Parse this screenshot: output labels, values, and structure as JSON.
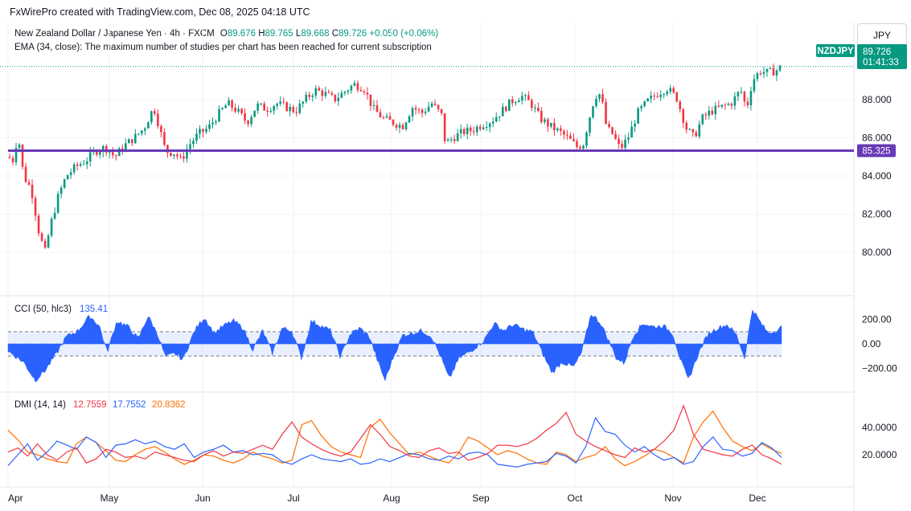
{
  "header": {
    "credit": "FxWirePro created with TradingView.com, Dec 08, 2025 04:18 UTC",
    "symbol_desc": "New Zealand Dollar / Japanese Yen · 4h · FXCM",
    "ohlc": {
      "o_label": "O",
      "o": "89.676",
      "h_label": "H",
      "h": "89.765",
      "l_label": "L",
      "l": "89.668",
      "c_label": "C",
      "c": "89.726",
      "change": "+0.050 (+0.06%)"
    },
    "ema_note": "EMA (34, close): The maximum number of studies per chart has been reached for current subscription",
    "currency": "JPY"
  },
  "price_panel": {
    "symbol_tag": "NZDJPY",
    "last_price": "89.726",
    "countdown": "01:41:33",
    "level_label": "85.325",
    "colors": {
      "up": "#089981",
      "down": "#f23645",
      "level": "#673ab7",
      "tag": "#089981"
    }
  },
  "cci_panel": {
    "title": "CCI (50, hlc3)",
    "value": "135.41",
    "color": "#2962ff"
  },
  "dmi_panel": {
    "title": "DMI (14, 14)",
    "plus_di": "12.7559",
    "minus_di": "17.7552",
    "adx": "20.8362",
    "colors": {
      "plus_di": "#f23645",
      "minus_di": "#2962ff",
      "adx": "#ff6d00"
    }
  },
  "chart_data": [
    {
      "type": "candlestick",
      "name": "NZDJPY",
      "ylim": [
        79.0,
        90.6
      ],
      "y_ticks": [
        "88.000",
        "86.000",
        "84.000",
        "82.000",
        "80.000"
      ],
      "y_tick_values": [
        88,
        86,
        84,
        82,
        80
      ],
      "x_ticks": [
        "Apr",
        "May",
        "Jun",
        "Jul",
        "Aug",
        "Sep",
        "Oct",
        "Nov",
        "Dec"
      ],
      "horizontal_level": 85.325,
      "last_close": 89.726,
      "close_path": [
        {
          "t": 0.0,
          "v": 85.0
        },
        {
          "t": 0.3,
          "v": 84.8
        },
        {
          "t": 0.5,
          "v": 86.3
        },
        {
          "t": 0.8,
          "v": 84.0
        },
        {
          "t": 1.2,
          "v": 83.3
        },
        {
          "t": 1.6,
          "v": 81.0
        },
        {
          "t": 1.9,
          "v": 80.0
        },
        {
          "t": 2.2,
          "v": 81.5
        },
        {
          "t": 2.6,
          "v": 83.0
        },
        {
          "t": 3.0,
          "v": 84.0
        },
        {
          "t": 3.5,
          "v": 84.5
        },
        {
          "t": 4.0,
          "v": 84.8
        },
        {
          "t": 4.5,
          "v": 85.3
        },
        {
          "t": 5.0,
          "v": 85.5
        },
        {
          "t": 5.5,
          "v": 85.0
        },
        {
          "t": 6.0,
          "v": 85.6
        },
        {
          "t": 6.5,
          "v": 86.0
        },
        {
          "t": 7.0,
          "v": 86.5
        },
        {
          "t": 7.5,
          "v": 87.6
        },
        {
          "t": 7.8,
          "v": 86.5
        },
        {
          "t": 8.1,
          "v": 85.3
        },
        {
          "t": 8.6,
          "v": 85.2
        },
        {
          "t": 8.9,
          "v": 84.8
        },
        {
          "t": 9.3,
          "v": 85.6
        },
        {
          "t": 9.8,
          "v": 86.2
        },
        {
          "t": 10.3,
          "v": 86.5
        },
        {
          "t": 10.8,
          "v": 87.2
        },
        {
          "t": 11.3,
          "v": 87.8
        },
        {
          "t": 11.8,
          "v": 87.4
        },
        {
          "t": 12.3,
          "v": 86.8
        },
        {
          "t": 12.8,
          "v": 87.7
        },
        {
          "t": 13.3,
          "v": 87.5
        },
        {
          "t": 13.8,
          "v": 87.8
        },
        {
          "t": 14.3,
          "v": 87.6
        },
        {
          "t": 14.8,
          "v": 87.4
        },
        {
          "t": 15.3,
          "v": 88.0
        },
        {
          "t": 15.8,
          "v": 88.5
        },
        {
          "t": 16.3,
          "v": 88.3
        },
        {
          "t": 16.8,
          "v": 88.0
        },
        {
          "t": 17.3,
          "v": 88.4
        },
        {
          "t": 17.8,
          "v": 88.8
        },
        {
          "t": 18.3,
          "v": 88.6
        },
        {
          "t": 18.8,
          "v": 87.5
        },
        {
          "t": 19.3,
          "v": 87.0
        },
        {
          "t": 19.8,
          "v": 86.8
        },
        {
          "t": 20.3,
          "v": 86.6
        },
        {
          "t": 20.8,
          "v": 87.6
        },
        {
          "t": 21.3,
          "v": 87.3
        },
        {
          "t": 21.8,
          "v": 87.8
        },
        {
          "t": 22.3,
          "v": 87.2
        },
        {
          "t": 22.5,
          "v": 85.7
        },
        {
          "t": 22.9,
          "v": 86.0
        },
        {
          "t": 23.4,
          "v": 86.3
        },
        {
          "t": 23.9,
          "v": 86.4
        },
        {
          "t": 24.4,
          "v": 86.7
        },
        {
          "t": 24.9,
          "v": 86.9
        },
        {
          "t": 25.4,
          "v": 87.4
        },
        {
          "t": 25.9,
          "v": 87.9
        },
        {
          "t": 26.4,
          "v": 88.2
        },
        {
          "t": 26.9,
          "v": 87.8
        },
        {
          "t": 27.4,
          "v": 87.0
        },
        {
          "t": 27.9,
          "v": 86.6
        },
        {
          "t": 28.4,
          "v": 86.3
        },
        {
          "t": 28.9,
          "v": 85.9
        },
        {
          "t": 29.3,
          "v": 85.5
        },
        {
          "t": 29.6,
          "v": 85.7
        },
        {
          "t": 29.9,
          "v": 87.0
        },
        {
          "t": 30.2,
          "v": 88.2
        },
        {
          "t": 30.5,
          "v": 88.3
        },
        {
          "t": 30.8,
          "v": 86.5
        },
        {
          "t": 31.1,
          "v": 86.2
        },
        {
          "t": 31.5,
          "v": 85.4
        },
        {
          "t": 31.9,
          "v": 86.0
        },
        {
          "t": 32.4,
          "v": 87.3
        },
        {
          "t": 32.9,
          "v": 87.9
        },
        {
          "t": 33.4,
          "v": 88.3
        },
        {
          "t": 33.9,
          "v": 88.6
        },
        {
          "t": 34.4,
          "v": 88.1
        },
        {
          "t": 34.9,
          "v": 86.5
        },
        {
          "t": 35.3,
          "v": 86.0
        },
        {
          "t": 35.7,
          "v": 87.0
        },
        {
          "t": 36.2,
          "v": 87.4
        },
        {
          "t": 36.7,
          "v": 87.6
        },
        {
          "t": 37.2,
          "v": 87.8
        },
        {
          "t": 37.7,
          "v": 88.5
        },
        {
          "t": 38.0,
          "v": 87.5
        },
        {
          "t": 38.3,
          "v": 89.0
        },
        {
          "t": 38.7,
          "v": 89.5
        },
        {
          "t": 39.1,
          "v": 89.4
        },
        {
          "t": 39.5,
          "v": 89.5
        },
        {
          "t": 39.8,
          "v": 89.726
        }
      ]
    },
    {
      "type": "histogram",
      "name": "CCI (50, hlc3)",
      "ylim": [
        -330,
        330
      ],
      "y_ticks": [
        "200.00",
        "0.00",
        "−200.00"
      ],
      "y_tick_values": [
        200,
        0,
        -200
      ],
      "band": [
        -100,
        100
      ],
      "last_value": 135.41,
      "path": [
        {
          "t": 0.0,
          "v": -60
        },
        {
          "t": 0.8,
          "v": -150
        },
        {
          "t": 1.4,
          "v": -300
        },
        {
          "t": 1.9,
          "v": -220
        },
        {
          "t": 2.5,
          "v": -80
        },
        {
          "t": 3.0,
          "v": 60
        },
        {
          "t": 3.6,
          "v": 110
        },
        {
          "t": 4.2,
          "v": 230
        },
        {
          "t": 4.7,
          "v": 150
        },
        {
          "t": 5.1,
          "v": -70
        },
        {
          "t": 5.6,
          "v": 190
        },
        {
          "t": 6.2,
          "v": 140
        },
        {
          "t": 6.7,
          "v": 40
        },
        {
          "t": 7.2,
          "v": 230
        },
        {
          "t": 7.7,
          "v": 80
        },
        {
          "t": 8.1,
          "v": -110
        },
        {
          "t": 8.6,
          "v": -80
        },
        {
          "t": 9.0,
          "v": -130
        },
        {
          "t": 9.6,
          "v": 110
        },
        {
          "t": 10.1,
          "v": 220
        },
        {
          "t": 10.6,
          "v": 90
        },
        {
          "t": 11.1,
          "v": 150
        },
        {
          "t": 11.6,
          "v": 190
        },
        {
          "t": 12.1,
          "v": 130
        },
        {
          "t": 12.6,
          "v": -50
        },
        {
          "t": 13.1,
          "v": 110
        },
        {
          "t": 13.6,
          "v": -80
        },
        {
          "t": 14.1,
          "v": 130
        },
        {
          "t": 14.6,
          "v": 110
        },
        {
          "t": 15.1,
          "v": -120
        },
        {
          "t": 15.6,
          "v": 190
        },
        {
          "t": 16.1,
          "v": 150
        },
        {
          "t": 16.6,
          "v": 110
        },
        {
          "t": 17.1,
          "v": -110
        },
        {
          "t": 17.6,
          "v": 80
        },
        {
          "t": 18.1,
          "v": 130
        },
        {
          "t": 18.6,
          "v": 60
        },
        {
          "t": 19.1,
          "v": -180
        },
        {
          "t": 19.4,
          "v": -300
        },
        {
          "t": 19.8,
          "v": -120
        },
        {
          "t": 20.3,
          "v": 70
        },
        {
          "t": 20.8,
          "v": 90
        },
        {
          "t": 21.3,
          "v": 110
        },
        {
          "t": 21.8,
          "v": 60
        },
        {
          "t": 22.3,
          "v": -120
        },
        {
          "t": 22.7,
          "v": -290
        },
        {
          "t": 23.2,
          "v": -120
        },
        {
          "t": 23.8,
          "v": -60
        },
        {
          "t": 24.5,
          "v": 30
        },
        {
          "t": 25.0,
          "v": 170
        },
        {
          "t": 25.5,
          "v": 110
        },
        {
          "t": 26.0,
          "v": 160
        },
        {
          "t": 26.5,
          "v": 120
        },
        {
          "t": 27.0,
          "v": 100
        },
        {
          "t": 27.5,
          "v": -80
        },
        {
          "t": 28.0,
          "v": -240
        },
        {
          "t": 28.5,
          "v": -150
        },
        {
          "t": 29.1,
          "v": -190
        },
        {
          "t": 29.5,
          "v": -80
        },
        {
          "t": 30.0,
          "v": 250
        },
        {
          "t": 30.5,
          "v": 170
        },
        {
          "t": 30.9,
          "v": 30
        },
        {
          "t": 31.3,
          "v": -120
        },
        {
          "t": 31.7,
          "v": -160
        },
        {
          "t": 32.2,
          "v": 80
        },
        {
          "t": 32.7,
          "v": 170
        },
        {
          "t": 33.2,
          "v": 140
        },
        {
          "t": 33.7,
          "v": 150
        },
        {
          "t": 34.2,
          "v": 90
        },
        {
          "t": 34.6,
          "v": -130
        },
        {
          "t": 35.0,
          "v": -300
        },
        {
          "t": 35.5,
          "v": -90
        },
        {
          "t": 36.0,
          "v": 80
        },
        {
          "t": 36.5,
          "v": 130
        },
        {
          "t": 37.0,
          "v": 160
        },
        {
          "t": 37.5,
          "v": 70
        },
        {
          "t": 37.9,
          "v": -120
        },
        {
          "t": 38.3,
          "v": 290
        },
        {
          "t": 38.7,
          "v": 180
        },
        {
          "t": 39.1,
          "v": 90
        },
        {
          "t": 39.5,
          "v": 110
        },
        {
          "t": 39.8,
          "v": 135.41
        }
      ]
    },
    {
      "type": "line",
      "name": "DMI (14, 14)",
      "ylim": [
        0,
        60
      ],
      "y_ticks": [
        "40.0000",
        "20.0000"
      ],
      "y_tick_values": [
        40,
        20
      ],
      "last_values": {
        "plus_di": 12.7559,
        "minus_di": 17.7552,
        "adx": 20.8362
      },
      "plus_di": [
        22,
        25,
        19,
        28,
        20,
        16,
        22,
        25,
        14,
        17,
        24,
        22,
        18,
        19,
        17,
        22,
        20,
        18,
        16,
        15,
        20,
        23,
        19,
        22,
        21,
        24,
        27,
        24,
        35,
        44,
        33,
        28,
        24,
        21,
        19,
        22,
        32,
        42,
        35,
        26,
        23,
        19,
        18,
        23,
        25,
        21,
        22,
        16,
        18,
        21,
        27,
        27,
        26,
        28,
        32,
        38,
        43,
        51,
        35,
        30,
        26,
        23,
        20,
        18,
        25,
        22,
        24,
        30,
        38,
        56,
        35,
        24,
        22,
        20,
        19,
        24,
        27,
        20,
        17,
        13
      ],
      "minus_di": [
        12,
        20,
        28,
        16,
        22,
        30,
        27,
        24,
        33,
        29,
        18,
        27,
        28,
        31,
        28,
        30,
        26,
        24,
        28,
        18,
        22,
        24,
        27,
        22,
        23,
        20,
        21,
        20,
        15,
        13,
        17,
        20,
        17,
        16,
        15,
        17,
        13,
        14,
        17,
        15,
        18,
        21,
        20,
        17,
        16,
        19,
        17,
        21,
        22,
        20,
        13,
        12,
        11,
        13,
        14,
        15,
        21,
        19,
        14,
        26,
        47,
        37,
        35,
        27,
        22,
        26,
        20,
        16,
        18,
        13,
        15,
        26,
        33,
        24,
        23,
        19,
        21,
        29,
        25,
        18
      ],
      "adx": [
        38,
        31,
        22,
        20,
        17,
        15,
        14,
        28,
        33,
        29,
        23,
        16,
        15,
        20,
        24,
        26,
        22,
        17,
        13,
        16,
        20,
        19,
        16,
        14,
        17,
        22,
        19,
        17,
        14,
        16,
        42,
        45,
        34,
        26,
        22,
        20,
        18,
        40,
        46,
        36,
        28,
        20,
        22,
        19,
        16,
        14,
        21,
        33,
        30,
        25,
        20,
        23,
        21,
        17,
        14,
        13,
        22,
        20,
        15,
        18,
        20,
        26,
        17,
        12,
        15,
        19,
        24,
        22,
        18,
        14,
        33,
        44,
        52,
        40,
        30,
        26,
        23,
        28,
        24,
        21
      ]
    }
  ]
}
